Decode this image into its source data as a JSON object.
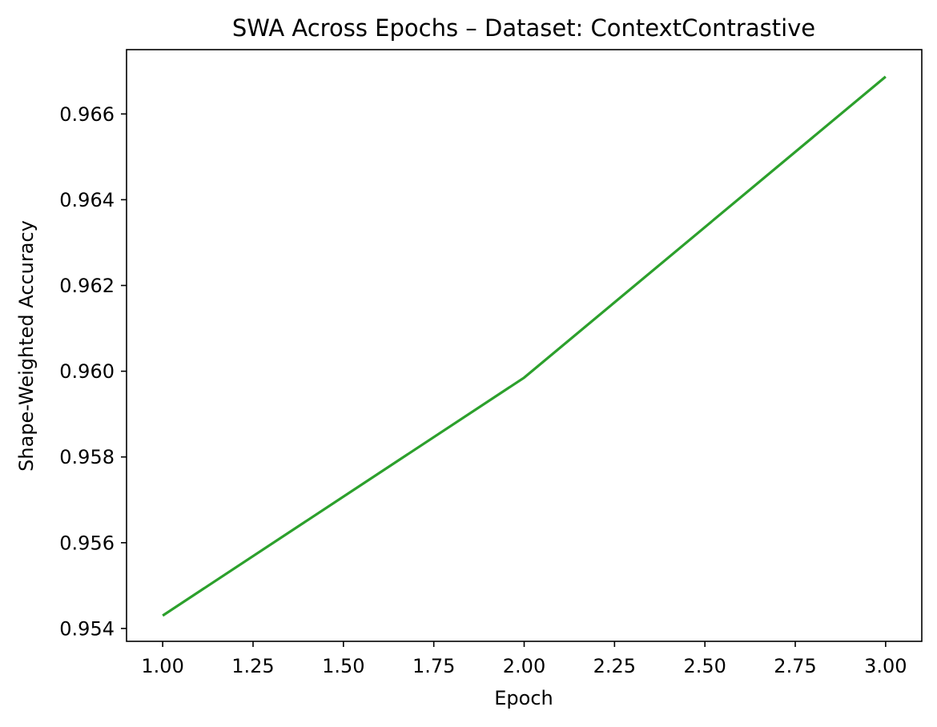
{
  "chart_data": {
    "type": "line",
    "title": "SWA Across Epochs – Dataset: ContextContrastive",
    "xlabel": "Epoch",
    "ylabel": "Shape-Weighted Accuracy",
    "xlim": [
      0.9,
      3.1
    ],
    "ylim": [
      0.9537,
      0.9675
    ],
    "xticks": [
      1.0,
      1.25,
      1.5,
      1.75,
      2.0,
      2.25,
      2.5,
      2.75,
      3.0
    ],
    "xtick_labels": [
      "1.00",
      "1.25",
      "1.50",
      "1.75",
      "2.00",
      "2.25",
      "2.50",
      "2.75",
      "3.00"
    ],
    "yticks": [
      0.954,
      0.956,
      0.958,
      0.96,
      0.962,
      0.964,
      0.966
    ],
    "ytick_labels": [
      "0.954",
      "0.956",
      "0.958",
      "0.960",
      "0.962",
      "0.964",
      "0.966"
    ],
    "grid": false,
    "legend": "none",
    "series": [
      {
        "color": "#2ca02c",
        "x": [
          1,
          2,
          3
        ],
        "y": [
          0.9543,
          0.95985,
          0.96687
        ]
      }
    ]
  }
}
